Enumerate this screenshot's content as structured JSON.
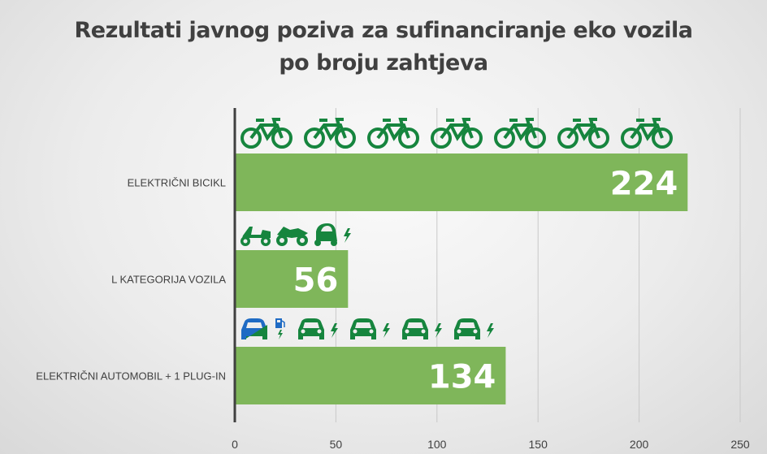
{
  "chart_data": {
    "type": "bar",
    "orientation": "horizontal",
    "title_lines": [
      "Rezultati javnog poziva za sufinanciranje eko vozila",
      "po broju zahtjeva"
    ],
    "categories": [
      "ELEKTRIČNI BICIKL",
      "L KATEGORIJA VOZILA",
      "ELEKTRIČNI AUTOMOBIL + 1 PLUG-IN"
    ],
    "values": [
      224,
      56,
      134
    ],
    "data_labels": [
      "224",
      "56",
      "134"
    ],
    "xlim": [
      0,
      250
    ],
    "x_ticks": [
      0,
      50,
      100,
      150,
      200,
      250
    ],
    "x_tick_labels": [
      "0",
      "50",
      "100",
      "150",
      "200",
      "250"
    ],
    "grid": true,
    "bar_color": "#7fb65a",
    "icon_color": "#16853e",
    "plugin_color": "#1f6bc4",
    "icons": [
      [
        "bicycle-icon",
        "bicycle-icon",
        "bicycle-icon",
        "bicycle-icon",
        "bicycle-icon",
        "bicycle-icon",
        "bicycle-icon"
      ],
      [
        "scooter-icon",
        "motorcycle-icon",
        "microcar-icon",
        "bolt-icon"
      ],
      [
        "plugin-car-icon",
        "fuel-pump-icon",
        "car-icon",
        "bolt-icon",
        "car-icon",
        "bolt-icon",
        "car-icon",
        "bolt-icon",
        "car-icon",
        "bolt-icon"
      ]
    ]
  }
}
